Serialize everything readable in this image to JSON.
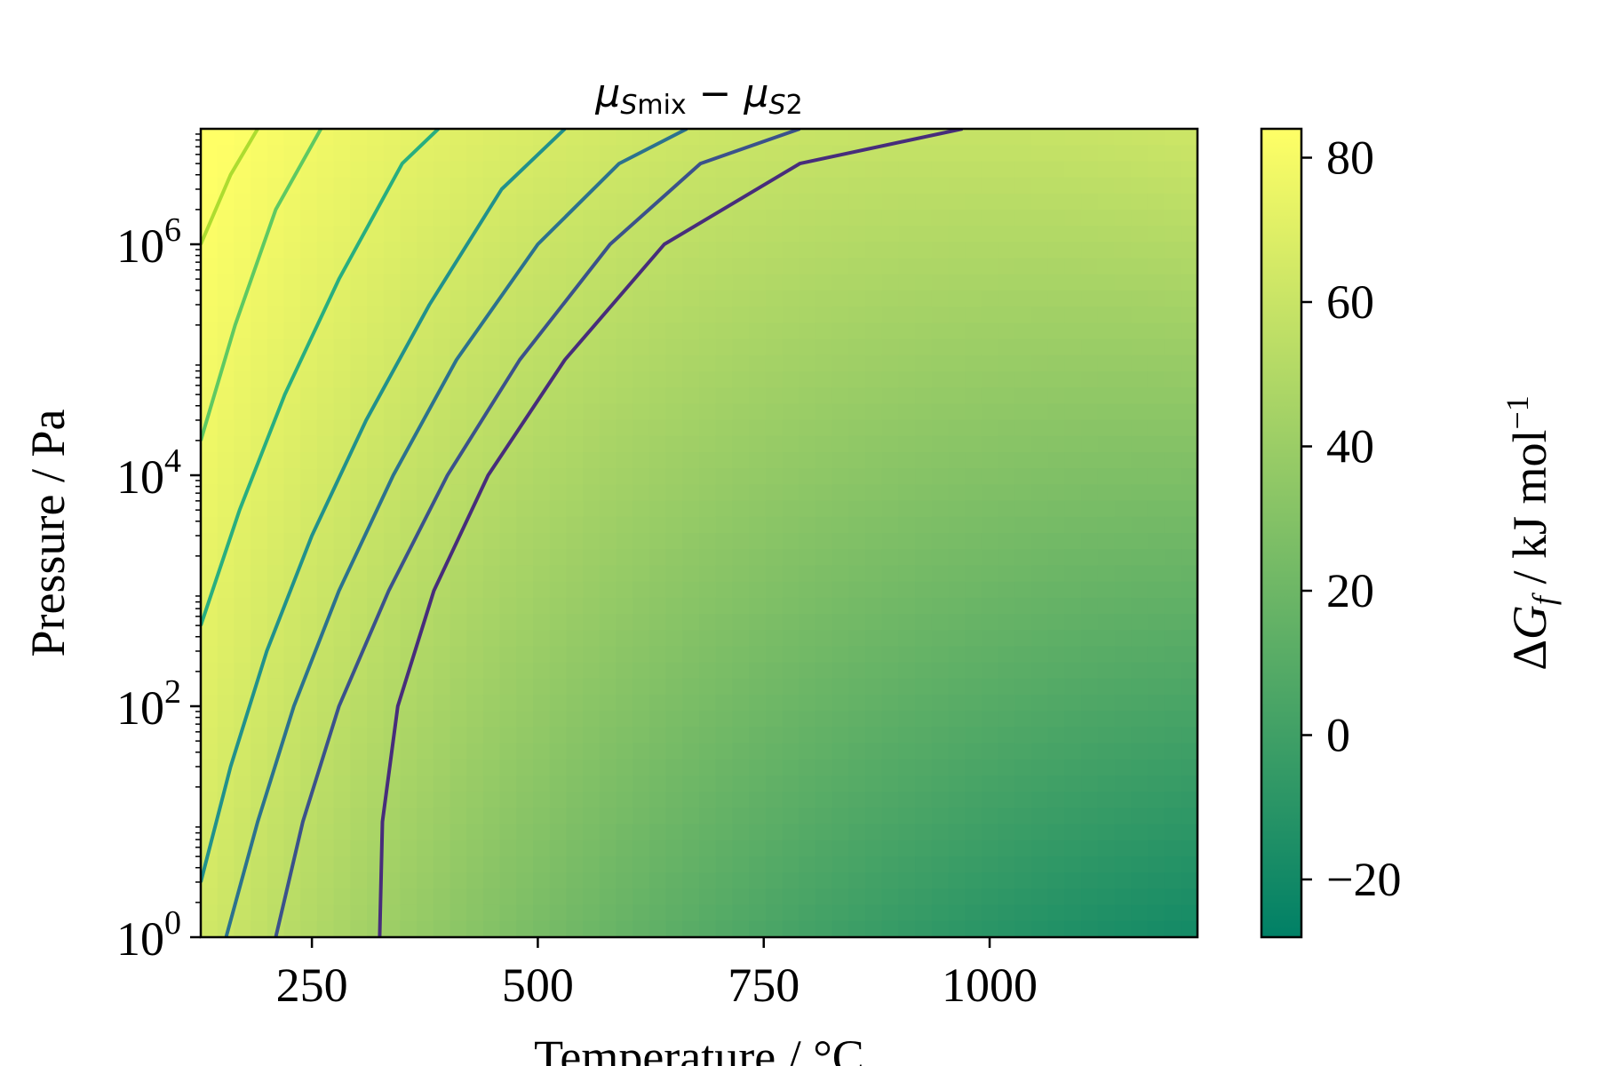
{
  "chart_data": {
    "type": "heatmap",
    "title_parts": {
      "mu1": "μ",
      "sub1": "S",
      "sub1_tail": "mix",
      "minus": " − ",
      "mu2": "μ",
      "sub2": "S",
      "sub2_tail": "2"
    },
    "xlabel": "Temperature / °C",
    "ylabel": "Pressure / Pa",
    "x_ticks": [
      {
        "value": 250,
        "label": "250"
      },
      {
        "value": 500,
        "label": "500"
      },
      {
        "value": 750,
        "label": "750"
      },
      {
        "value": 1000,
        "label": "1000"
      }
    ],
    "y_ticks": [
      {
        "value": 1,
        "base": "10",
        "exp": "0"
      },
      {
        "value": 100,
        "base": "10",
        "exp": "2"
      },
      {
        "value": 10000,
        "base": "10",
        "exp": "4"
      },
      {
        "value": 1000000,
        "base": "10",
        "exp": "6"
      }
    ],
    "xlim": [
      127,
      1230
    ],
    "ylim": [
      1,
      10000000
    ],
    "yscale": "log",
    "colorbar": {
      "label_parts": {
        "delta": "Δ",
        "g": "G",
        "sub": "f",
        "rest": " / kJ mol",
        "sup": "−1"
      },
      "range": [
        -28,
        84
      ],
      "ticks": [
        {
          "value": 80,
          "label": "80"
        },
        {
          "value": 60,
          "label": "60"
        },
        {
          "value": 40,
          "label": "40"
        },
        {
          "value": 20,
          "label": "20"
        },
        {
          "value": 0,
          "label": "0"
        },
        {
          "value": -20,
          "label": "−20"
        }
      ],
      "colormap": "summer"
    },
    "contour_levels": [
      {
        "level": 0,
        "color": "#472d7b",
        "points": [
          [
            325,
            1
          ],
          [
            328,
            10
          ],
          [
            345,
            100
          ],
          [
            385,
            1000
          ],
          [
            445,
            10000
          ],
          [
            530,
            100000
          ],
          [
            640,
            1000000
          ],
          [
            790,
            5000000
          ],
          [
            970,
            10000000
          ]
        ]
      },
      {
        "level": 10,
        "color": "#3b528b",
        "points": [
          [
            210,
            1
          ],
          [
            240,
            10
          ],
          [
            280,
            100
          ],
          [
            335,
            1000
          ],
          [
            400,
            10000
          ],
          [
            480,
            100000
          ],
          [
            580,
            1000000
          ],
          [
            680,
            5000000
          ],
          [
            790,
            10000000
          ]
        ]
      },
      {
        "level": 20,
        "color": "#2c728e",
        "points": [
          [
            155,
            1
          ],
          [
            190,
            10
          ],
          [
            230,
            100
          ],
          [
            280,
            1000
          ],
          [
            340,
            10000
          ],
          [
            410,
            100000
          ],
          [
            500,
            1000000
          ],
          [
            590,
            5000000
          ],
          [
            665,
            10000000
          ]
        ]
      },
      {
        "level": 30,
        "color": "#21918c",
        "points": [
          [
            127,
            3
          ],
          [
            160,
            30
          ],
          [
            200,
            300
          ],
          [
            250,
            3000
          ],
          [
            310,
            30000
          ],
          [
            380,
            300000
          ],
          [
            460,
            3000000
          ],
          [
            530,
            10000000
          ]
        ]
      },
      {
        "level": 40,
        "color": "#28ae80",
        "points": [
          [
            127,
            500
          ],
          [
            170,
            5000
          ],
          [
            220,
            50000
          ],
          [
            280,
            500000
          ],
          [
            350,
            5000000
          ],
          [
            390,
            10000000
          ]
        ]
      },
      {
        "level": 50,
        "color": "#5ec962",
        "points": [
          [
            127,
            20000
          ],
          [
            165,
            200000
          ],
          [
            210,
            2000000
          ],
          [
            260,
            10000000
          ]
        ]
      },
      {
        "level": 60,
        "color": "#addc30",
        "points": [
          [
            127,
            1000000
          ],
          [
            160,
            4000000
          ],
          [
            190,
            10000000
          ]
        ]
      }
    ]
  }
}
